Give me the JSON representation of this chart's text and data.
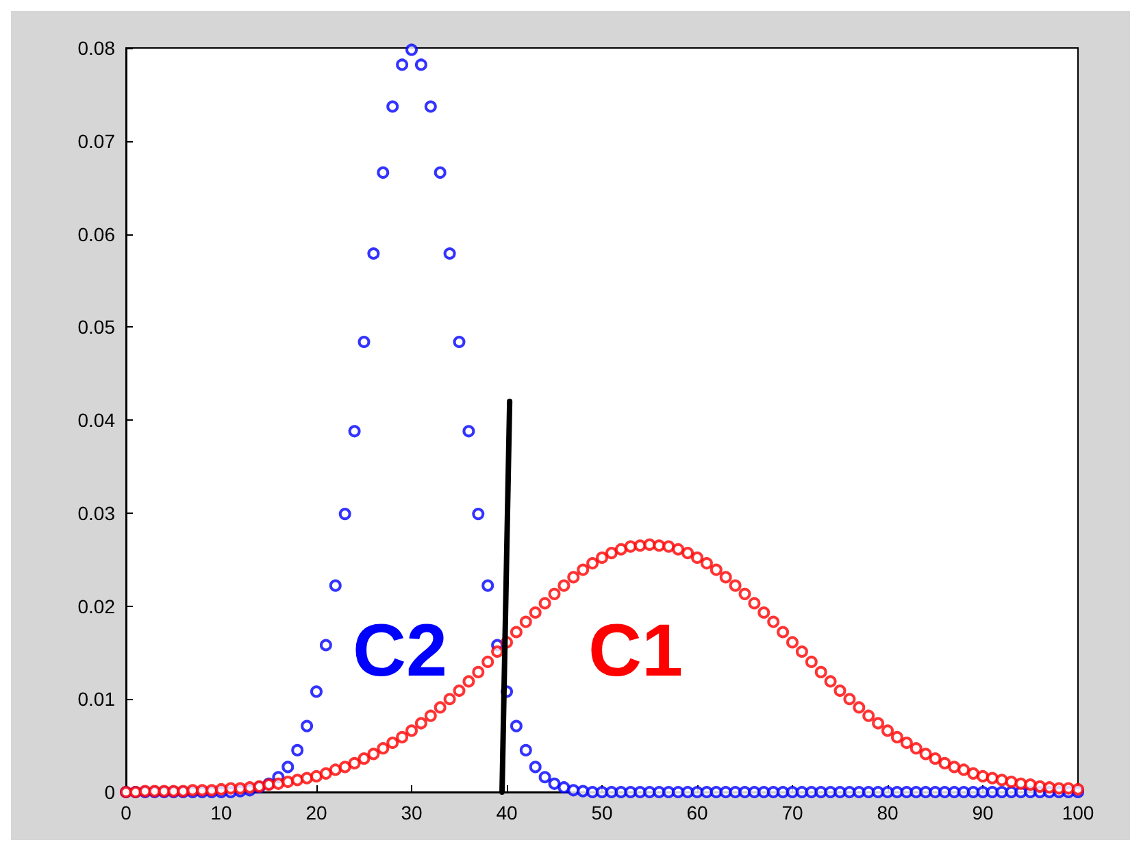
{
  "chart_data": {
    "type": "scatter",
    "grid": false,
    "xlim": [
      0,
      100
    ],
    "xticks": [
      0,
      10,
      20,
      30,
      40,
      50,
      60,
      70,
      80,
      90,
      100
    ],
    "ylim": [
      0,
      0.08
    ],
    "yticks": [
      0,
      0.01,
      0.02,
      0.03,
      0.04,
      0.05,
      0.06,
      0.07,
      0.08
    ],
    "x": [
      0,
      1,
      2,
      3,
      4,
      5,
      6,
      7,
      8,
      9,
      10,
      11,
      12,
      13,
      14,
      15,
      16,
      17,
      18,
      19,
      20,
      21,
      22,
      23,
      24,
      25,
      26,
      27,
      28,
      29,
      30,
      31,
      32,
      33,
      34,
      35,
      36,
      37,
      38,
      39,
      40,
      41,
      42,
      43,
      44,
      45,
      46,
      47,
      48,
      49,
      50,
      51,
      52,
      53,
      54,
      55,
      56,
      57,
      58,
      59,
      60,
      61,
      62,
      63,
      64,
      65,
      66,
      67,
      68,
      69,
      70,
      71,
      72,
      73,
      74,
      75,
      76,
      77,
      78,
      79,
      80,
      81,
      82,
      83,
      84,
      85,
      86,
      87,
      88,
      89,
      90,
      91,
      92,
      93,
      94,
      95,
      96,
      97,
      98,
      99,
      100
    ],
    "series": [
      {
        "color": "#0000ff",
        "marker": "circle",
        "values": [
          0,
          0,
          0,
          0,
          0,
          0,
          0,
          0,
          0,
          0,
          0,
          0,
          0.0001,
          0.0002,
          0.0005,
          0.0009,
          0.0016,
          0.0027,
          0.0045,
          0.0071,
          0.0108,
          0.0158,
          0.0222,
          0.0299,
          0.0388,
          0.0484,
          0.0579,
          0.0666,
          0.0737,
          0.0782,
          0.0798,
          0.0782,
          0.0737,
          0.0666,
          0.0579,
          0.0484,
          0.0388,
          0.0299,
          0.0222,
          0.0158,
          0.0108,
          0.0071,
          0.0045,
          0.0027,
          0.0016,
          0.0009,
          0.0005,
          0.0002,
          0.0001,
          0,
          0,
          0,
          0,
          0,
          0,
          0,
          0,
          0,
          0,
          0,
          0,
          0,
          0,
          0,
          0,
          0,
          0,
          0,
          0,
          0,
          0,
          0,
          0,
          0,
          0,
          0,
          0,
          0,
          0,
          0,
          0,
          0,
          0,
          0,
          0,
          0,
          0,
          0,
          0,
          0,
          0,
          0,
          0,
          0,
          0,
          0,
          0,
          0,
          0,
          0,
          0
        ]
      },
      {
        "color": "#ff0000",
        "marker": "circle",
        "values": [
          0,
          0,
          0.0001,
          0.0001,
          0.0001,
          0.0001,
          0.0001,
          0.0002,
          0.0002,
          0.0002,
          0.0003,
          0.0004,
          0.0004,
          0.0005,
          0.0006,
          0.0008,
          0.0009,
          0.0011,
          0.0013,
          0.0015,
          0.0017,
          0.002,
          0.0024,
          0.0027,
          0.0031,
          0.0036,
          0.0041,
          0.0047,
          0.0053,
          0.0059,
          0.0066,
          0.0074,
          0.0082,
          0.0091,
          0.01,
          0.0109,
          0.0119,
          0.0129,
          0.014,
          0.0151,
          0.0161,
          0.0172,
          0.0183,
          0.0193,
          0.0203,
          0.0213,
          0.0222,
          0.0231,
          0.0239,
          0.0246,
          0.0252,
          0.0257,
          0.0261,
          0.0264,
          0.0265,
          0.0266,
          0.0265,
          0.0264,
          0.0261,
          0.0257,
          0.0252,
          0.0246,
          0.0239,
          0.0231,
          0.0222,
          0.0213,
          0.0203,
          0.0193,
          0.0183,
          0.0172,
          0.0161,
          0.0151,
          0.014,
          0.0129,
          0.0119,
          0.0109,
          0.01,
          0.0091,
          0.0082,
          0.0074,
          0.0066,
          0.0059,
          0.0053,
          0.0047,
          0.0041,
          0.0036,
          0.0031,
          0.0027,
          0.0024,
          0.002,
          0.0017,
          0.0015,
          0.0013,
          0.0011,
          0.0009,
          0.0008,
          0.0006,
          0.0005,
          0.0004,
          0.0004,
          0.0003
        ]
      },
      {
        "type": "line",
        "color": "#000000",
        "x": [
          39.5,
          40.3
        ],
        "values": [
          0,
          0.042
        ]
      }
    ],
    "annotations": [
      "C2",
      "C1"
    ]
  }
}
